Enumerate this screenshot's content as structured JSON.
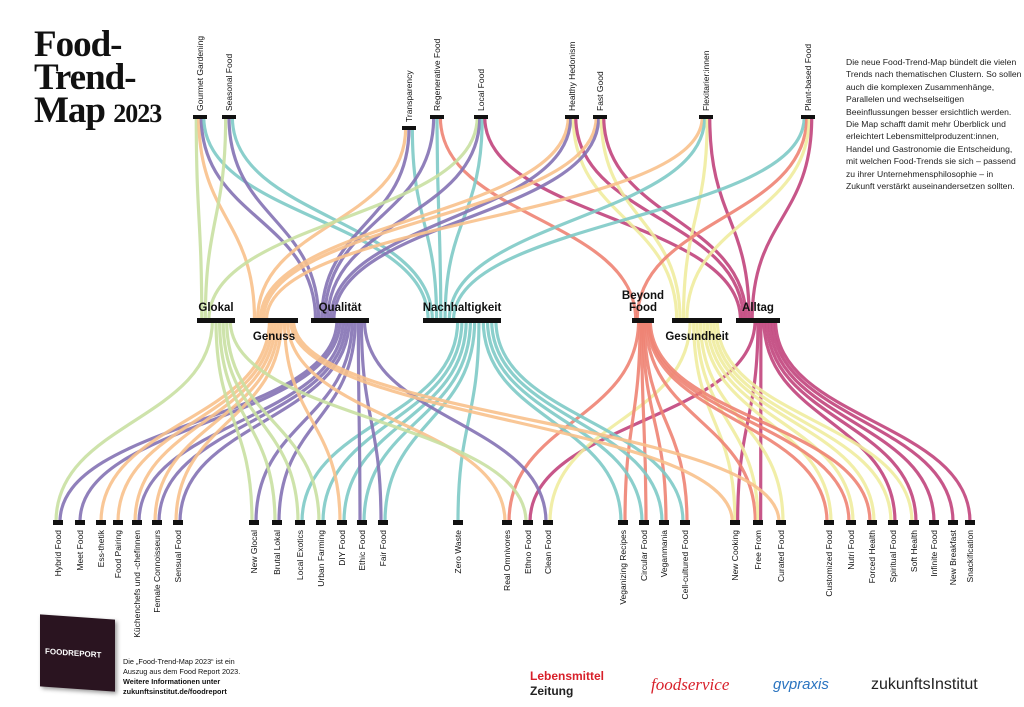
{
  "title": {
    "line1": "Food-",
    "line2": "Trend-",
    "line3": "Map",
    "year": "2023"
  },
  "intro": "Die neue Food-Trend-Map bündelt die vielen Trends nach thematischen Clustern. So sollen auch die komplexen Zusammenhänge, Parallelen und wechselseitigen Beeinflussungen besser ersichtlich werden. Die Map schafft damit mehr Überblick und erleichtert Lebensmittelproduzent:innen, Handel und Gastronomie die Entscheidung, mit welchen Food-Trends sie sich – passend zu ihrer Unternehmensphilosophie – in Zukunft verstärkt auseinandersetzen sollten.",
  "colors": {
    "glokal": "#c9e0a2",
    "genuss": "#f8c18c",
    "qualitaet": "#8472b4",
    "nachhaltigkeit": "#7ecac7",
    "beyond": "#ee8373",
    "gesundheit": "#f0ec9e",
    "alltag": "#c1447c"
  },
  "clusters": [
    {
      "id": "glokal",
      "label": "Glokal"
    },
    {
      "id": "genuss",
      "label": "Genuss"
    },
    {
      "id": "qualitaet",
      "label": "Qualität"
    },
    {
      "id": "nachhaltigkeit",
      "label": "Nachhaltigkeit"
    },
    {
      "id": "beyond",
      "label": "Beyond Food"
    },
    {
      "id": "gesundheit",
      "label": "Gesundheit"
    },
    {
      "id": "alltag",
      "label": "Alltag"
    }
  ],
  "top_trends": [
    {
      "label": "Gourmet Gardening",
      "clusters": [
        "glokal",
        "genuss",
        "qualitaet",
        "nachhaltigkeit"
      ]
    },
    {
      "label": "Seasonal Food",
      "clusters": [
        "glokal",
        "qualitaet",
        "nachhaltigkeit"
      ]
    },
    {
      "label": "Transparency",
      "clusters": [
        "genuss",
        "qualitaet",
        "nachhaltigkeit"
      ]
    },
    {
      "label": "Regenerative Food",
      "clusters": [
        "qualitaet",
        "nachhaltigkeit",
        "beyond"
      ]
    },
    {
      "label": "Local Food",
      "clusters": [
        "glokal",
        "qualitaet",
        "nachhaltigkeit",
        "alltag"
      ]
    },
    {
      "label": "Healthy Hedonism",
      "clusters": [
        "genuss",
        "qualitaet",
        "gesundheit",
        "alltag"
      ]
    },
    {
      "label": "Fast Good",
      "clusters": [
        "genuss",
        "qualitaet",
        "gesundheit",
        "alltag"
      ]
    },
    {
      "label": "Flexitarier:innen",
      "clusters": [
        "genuss",
        "nachhaltigkeit",
        "gesundheit",
        "alltag"
      ]
    },
    {
      "label": "Plant-based Food",
      "clusters": [
        "nachhaltigkeit",
        "beyond",
        "gesundheit",
        "alltag"
      ]
    }
  ],
  "bottom_trends": [
    {
      "label": "Hybrid Food",
      "clusters": [
        "glokal",
        "qualitaet"
      ]
    },
    {
      "label": "Meet Food",
      "clusters": [
        "qualitaet"
      ]
    },
    {
      "label": "Ess-thetik",
      "clusters": [
        "genuss"
      ]
    },
    {
      "label": "Food Pairing",
      "clusters": [
        "genuss"
      ]
    },
    {
      "label": "Küchenchefs und -chefinnen",
      "clusters": [
        "genuss",
        "qualitaet"
      ]
    },
    {
      "label": "Female Connoisseurs",
      "clusters": [
        "genuss",
        "qualitaet"
      ]
    },
    {
      "label": "Sensual Food",
      "clusters": [
        "genuss",
        "qualitaet"
      ]
    },
    {
      "label": "New Glocal",
      "clusters": [
        "glokal",
        "qualitaet"
      ]
    },
    {
      "label": "Brutal Lokal",
      "clusters": [
        "glokal",
        "qualitaet"
      ]
    },
    {
      "label": "Local Exotics",
      "clusters": [
        "glokal",
        "nachhaltigkeit"
      ]
    },
    {
      "label": "Urban Farming",
      "clusters": [
        "glokal",
        "nachhaltigkeit"
      ]
    },
    {
      "label": "DIY Food",
      "clusters": [
        "genuss",
        "nachhaltigkeit"
      ]
    },
    {
      "label": "Ethic Food",
      "clusters": [
        "qualitaet",
        "nachhaltigkeit"
      ]
    },
    {
      "label": "Fair Food",
      "clusters": [
        "qualitaet",
        "nachhaltigkeit"
      ]
    },
    {
      "label": "Zero Waste",
      "clusters": [
        "nachhaltigkeit"
      ]
    },
    {
      "label": "Real Omnivores",
      "clusters": [
        "genuss",
        "beyond"
      ]
    },
    {
      "label": "Ethno Food",
      "clusters": [
        "glokal",
        "alltag"
      ]
    },
    {
      "label": "Clean Food",
      "clusters": [
        "qualitaet",
        "gesundheit"
      ]
    },
    {
      "label": "Veganizing Recipes",
      "clusters": [
        "nachhaltigkeit",
        "beyond"
      ]
    },
    {
      "label": "Circular Food",
      "clusters": [
        "nachhaltigkeit",
        "beyond"
      ]
    },
    {
      "label": "Veganmania",
      "clusters": [
        "nachhaltigkeit",
        "beyond"
      ]
    },
    {
      "label": "Cell-cultured Food",
      "clusters": [
        "nachhaltigkeit",
        "beyond"
      ]
    },
    {
      "label": "New Cooking",
      "clusters": [
        "genuss",
        "gesundheit",
        "alltag"
      ]
    },
    {
      "label": "Free From",
      "clusters": [
        "beyond",
        "gesundheit",
        "alltag"
      ]
    },
    {
      "label": "Curated Food",
      "clusters": [
        "genuss",
        "gesundheit"
      ]
    },
    {
      "label": "Customized Food",
      "clusters": [
        "beyond",
        "gesundheit"
      ]
    },
    {
      "label": "Nutri Food",
      "clusters": [
        "beyond",
        "gesundheit"
      ]
    },
    {
      "label": "Forced Health",
      "clusters": [
        "beyond",
        "gesundheit"
      ]
    },
    {
      "label": "Spiritual Food",
      "clusters": [
        "gesundheit",
        "alltag"
      ]
    },
    {
      "label": "Soft Health",
      "clusters": [
        "gesundheit",
        "alltag"
      ]
    },
    {
      "label": "Infinite Food",
      "clusters": [
        "alltag"
      ]
    },
    {
      "label": "New Breakfast",
      "clusters": [
        "alltag"
      ]
    },
    {
      "label": "Snackification",
      "clusters": [
        "alltag"
      ]
    }
  ],
  "footer": {
    "line1": "Die „Food-Trend-Map 2023“ ist ein",
    "line2": "Auszug aus dem Food Report 2023.",
    "line3": "Weitere Informationen unter",
    "line4": "zukunftsinstitut.de/foodreport"
  },
  "cover_label": "FOODREPORT",
  "logos": {
    "lz_1": "Lebensmittel",
    "lz_2": "Zeitung",
    "foodservice": "foodservice",
    "gvpraxis": "gvpraxis",
    "zukunftsinstitut": "zukunftsInstitut"
  }
}
